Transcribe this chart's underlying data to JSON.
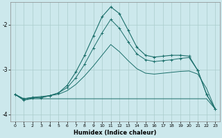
{
  "xlabel": "Humidex (Indice chaleur)",
  "bg_color": "#cce8ec",
  "grid_color": "#aacccc",
  "line_color": "#1a6e6a",
  "xlim": [
    -0.5,
    23.5
  ],
  "ylim": [
    -4.15,
    -1.5
  ],
  "yticks": [
    -4,
    -3,
    -2
  ],
  "xticks": [
    0,
    1,
    2,
    3,
    4,
    5,
    6,
    7,
    8,
    9,
    10,
    11,
    12,
    13,
    14,
    15,
    16,
    17,
    18,
    19,
    20,
    21,
    22,
    23
  ],
  "line1_x": [
    0,
    1,
    2,
    3,
    4,
    5,
    6,
    7,
    8,
    9,
    10,
    11,
    12,
    13,
    14,
    15,
    16,
    17,
    18,
    19,
    20,
    21,
    22,
    23
  ],
  "line1_y": [
    -3.55,
    -3.68,
    -3.63,
    -3.63,
    -3.58,
    -3.52,
    -3.35,
    -3.05,
    -2.68,
    -2.25,
    -1.82,
    -1.6,
    -1.75,
    -2.12,
    -2.5,
    -2.68,
    -2.72,
    -2.7,
    -2.68,
    -2.68,
    -2.7,
    -3.02,
    -3.55,
    -3.88
  ],
  "line2_x": [
    0,
    1,
    2,
    3,
    4,
    5,
    6,
    7,
    8,
    9,
    10,
    11,
    12,
    13,
    14,
    15,
    16,
    17,
    18,
    19,
    20,
    21,
    22,
    23
  ],
  "line2_y": [
    -3.55,
    -3.68,
    -3.65,
    -3.65,
    -3.65,
    -3.65,
    -3.65,
    -3.65,
    -3.65,
    -3.65,
    -3.65,
    -3.65,
    -3.65,
    -3.65,
    -3.65,
    -3.65,
    -3.65,
    -3.65,
    -3.65,
    -3.65,
    -3.65,
    -3.65,
    -3.65,
    -3.88
  ],
  "line3_x": [
    0,
    1,
    2,
    3,
    4,
    5,
    6,
    7,
    8,
    9,
    10,
    11,
    12,
    13,
    14,
    15,
    16,
    17,
    18,
    19,
    20,
    21,
    22,
    23
  ],
  "line3_y": [
    -3.55,
    -3.65,
    -3.62,
    -3.62,
    -3.58,
    -3.52,
    -3.4,
    -3.18,
    -2.88,
    -2.52,
    -2.18,
    -1.88,
    -2.08,
    -2.38,
    -2.65,
    -2.78,
    -2.82,
    -2.8,
    -2.78,
    -2.75,
    -2.73,
    -3.02,
    -3.55,
    -3.88
  ],
  "line4_x": [
    0,
    1,
    2,
    3,
    4,
    5,
    6,
    7,
    8,
    9,
    10,
    11,
    12,
    13,
    14,
    15,
    16,
    17,
    18,
    19,
    20,
    21,
    22,
    23
  ],
  "line4_y": [
    -3.55,
    -3.65,
    -3.62,
    -3.6,
    -3.58,
    -3.55,
    -3.47,
    -3.33,
    -3.14,
    -2.92,
    -2.68,
    -2.44,
    -2.6,
    -2.8,
    -2.98,
    -3.08,
    -3.1,
    -3.08,
    -3.06,
    -3.04,
    -3.03,
    -3.1,
    -3.42,
    -3.88
  ]
}
